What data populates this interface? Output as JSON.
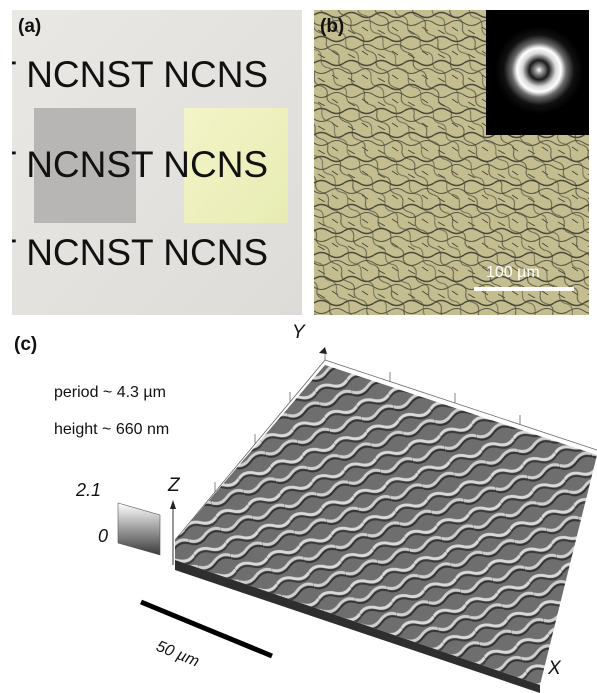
{
  "panels": {
    "a": {
      "label": "(a)",
      "lines": [
        "T NCNST NCNS",
        "T NCNST NCNS",
        "T NCNST NCNS"
      ]
    },
    "b": {
      "label": "(b)",
      "scalebar_label": "100 µm"
    },
    "c": {
      "label": "(c)",
      "period": "period ~ 4.3 µm",
      "height": "height ~ 660 nm",
      "colorbar_max": "2.1",
      "colorbar_min": "0",
      "axis_x": "X",
      "axis_y": "Y",
      "axis_z": "Z",
      "scalebar_label": "50 µm"
    }
  }
}
